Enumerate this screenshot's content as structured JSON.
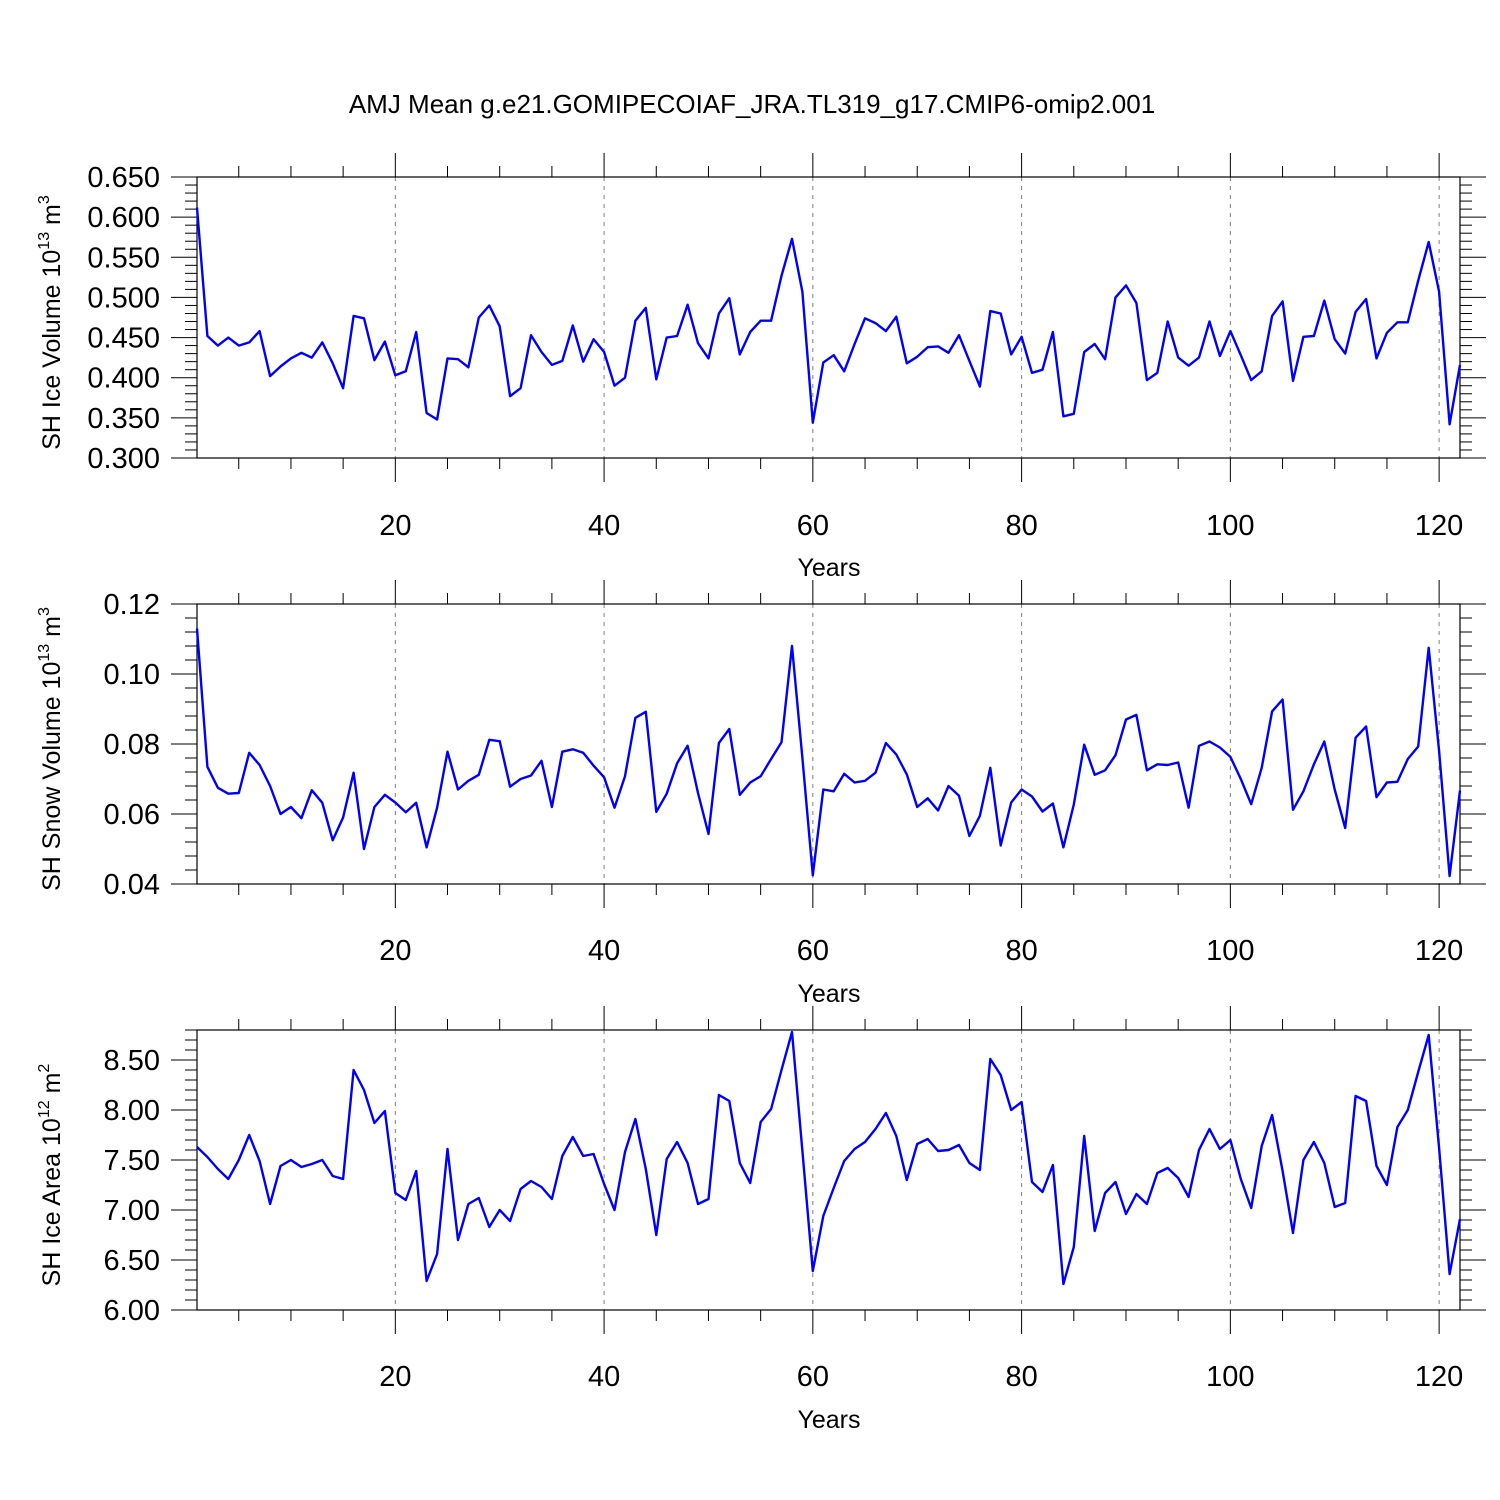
{
  "title": "AMJ Mean g.e21.GOMIPECOIAF_JRA.TL319_g17.CMIP6-omip2.001",
  "colors": {
    "line": "#0000ff",
    "frame": "#000000",
    "grid": "#7f7f7f"
  },
  "chart_data": [
    {
      "type": "line",
      "ylabel_main": "SH Ice Volume 10",
      "ylabel_exp": "13",
      "ylabel_unit": " m",
      "ylabel_unit_exp": "3",
      "xlabel": "Years",
      "xlim": [
        1,
        122
      ],
      "ylim": [
        0.3,
        0.65
      ],
      "xticks": [
        20,
        40,
        60,
        80,
        100,
        120
      ],
      "yticks": [
        "0.300",
        "0.350",
        "0.400",
        "0.450",
        "0.500",
        "0.550",
        "0.600",
        "0.650"
      ],
      "grid": "vertical dashed at major x ticks",
      "x": [
        1,
        2,
        3,
        4,
        5,
        6,
        7,
        8,
        9,
        10,
        11,
        12,
        13,
        14,
        15,
        16,
        17,
        18,
        19,
        20,
        21,
        22,
        23,
        24,
        25,
        26,
        27,
        28,
        29,
        30,
        31,
        32,
        33,
        34,
        35,
        36,
        37,
        38,
        39,
        40,
        41,
        42,
        43,
        44,
        45,
        46,
        47,
        48,
        49,
        50,
        51,
        52,
        53,
        54,
        55,
        56,
        57,
        58,
        59,
        60,
        61,
        62,
        63,
        64,
        65,
        66,
        67,
        68,
        69,
        70,
        71,
        72,
        73,
        74,
        75,
        76,
        77,
        78,
        79,
        80,
        81,
        82,
        83,
        84,
        85,
        86,
        87,
        88,
        89,
        90,
        91,
        92,
        93,
        94,
        95,
        96,
        97,
        98,
        99,
        100,
        101,
        102,
        103,
        104,
        105,
        106,
        107,
        108,
        109,
        110,
        111,
        112,
        113,
        114,
        115,
        116,
        117,
        118,
        119,
        120,
        121,
        122
      ],
      "values": [
        0.612,
        0.452,
        0.44,
        0.45,
        0.44,
        0.444,
        0.458,
        0.402,
        0.414,
        0.424,
        0.431,
        0.425,
        0.444,
        0.418,
        0.387,
        0.477,
        0.474,
        0.422,
        0.445,
        0.403,
        0.408,
        0.457,
        0.356,
        0.348,
        0.424,
        0.423,
        0.413,
        0.475,
        0.49,
        0.464,
        0.377,
        0.387,
        0.453,
        0.432,
        0.416,
        0.421,
        0.465,
        0.42,
        0.448,
        0.432,
        0.39,
        0.4,
        0.471,
        0.487,
        0.398,
        0.45,
        0.452,
        0.491,
        0.443,
        0.424,
        0.48,
        0.499,
        0.429,
        0.457,
        0.471,
        0.471,
        0.527,
        0.573,
        0.507,
        0.344,
        0.419,
        0.428,
        0.408,
        0.442,
        0.474,
        0.468,
        0.458,
        0.476,
        0.418,
        0.426,
        0.438,
        0.439,
        0.431,
        0.453,
        0.421,
        0.389,
        0.483,
        0.48,
        0.429,
        0.451,
        0.406,
        0.41,
        0.457,
        0.352,
        0.355,
        0.432,
        0.442,
        0.423,
        0.5,
        0.515,
        0.493,
        0.397,
        0.406,
        0.47,
        0.425,
        0.415,
        0.425,
        0.47,
        0.427,
        0.458,
        0.428,
        0.397,
        0.408,
        0.477,
        0.495,
        0.396,
        0.451,
        0.452,
        0.496,
        0.448,
        0.43,
        0.482,
        0.498,
        0.424,
        0.456,
        0.469,
        0.469,
        0.521,
        0.569,
        0.507,
        0.342,
        0.416
      ]
    },
    {
      "type": "line",
      "ylabel_main": "SH Snow Volume 10",
      "ylabel_exp": "13",
      "ylabel_unit": " m",
      "ylabel_unit_exp": "3",
      "xlabel": "Years",
      "xlim": [
        1,
        122
      ],
      "ylim": [
        0.04,
        0.12
      ],
      "xticks": [
        20,
        40,
        60,
        80,
        100,
        120
      ],
      "yticks": [
        "0.04",
        "0.06",
        "0.08",
        "0.10",
        "0.12"
      ],
      "grid": "vertical dashed at major x ticks",
      "x": [
        1,
        2,
        3,
        4,
        5,
        6,
        7,
        8,
        9,
        10,
        11,
        12,
        13,
        14,
        15,
        16,
        17,
        18,
        19,
        20,
        21,
        22,
        23,
        24,
        25,
        26,
        27,
        28,
        29,
        30,
        31,
        32,
        33,
        34,
        35,
        36,
        37,
        38,
        39,
        40,
        41,
        42,
        43,
        44,
        45,
        46,
        47,
        48,
        49,
        50,
        51,
        52,
        53,
        54,
        55,
        56,
        57,
        58,
        59,
        60,
        61,
        62,
        63,
        64,
        65,
        66,
        67,
        68,
        69,
        70,
        71,
        72,
        73,
        74,
        75,
        76,
        77,
        78,
        79,
        80,
        81,
        82,
        83,
        84,
        85,
        86,
        87,
        88,
        89,
        90,
        91,
        92,
        93,
        94,
        95,
        96,
        97,
        98,
        99,
        100,
        101,
        102,
        103,
        104,
        105,
        106,
        107,
        108,
        109,
        110,
        111,
        112,
        113,
        114,
        115,
        116,
        117,
        118,
        119,
        120,
        121,
        122
      ],
      "values": [
        0.113,
        0.0735,
        0.0675,
        0.0658,
        0.066,
        0.0775,
        0.074,
        0.068,
        0.06,
        0.062,
        0.0588,
        0.0668,
        0.0632,
        0.0525,
        0.059,
        0.0718,
        0.05,
        0.062,
        0.0655,
        0.0633,
        0.0605,
        0.0632,
        0.0505,
        0.0618,
        0.0778,
        0.067,
        0.0695,
        0.0712,
        0.0812,
        0.0808,
        0.0678,
        0.07,
        0.071,
        0.0752,
        0.062,
        0.0778,
        0.0785,
        0.0775,
        0.0738,
        0.0705,
        0.0618,
        0.0708,
        0.0875,
        0.0892,
        0.0606,
        0.0658,
        0.0745,
        0.0795,
        0.066,
        0.0543,
        0.0803,
        0.0843,
        0.0655,
        0.069,
        0.0708,
        0.0757,
        0.0805,
        0.108,
        0.076,
        0.0425,
        0.067,
        0.0665,
        0.0715,
        0.069,
        0.0695,
        0.0718,
        0.0803,
        0.077,
        0.0713,
        0.062,
        0.0645,
        0.061,
        0.068,
        0.0652,
        0.0537,
        0.0595,
        0.0732,
        0.051,
        0.0633,
        0.067,
        0.065,
        0.0607,
        0.063,
        0.0505,
        0.0627,
        0.0798,
        0.0712,
        0.0725,
        0.0768,
        0.087,
        0.0883,
        0.0725,
        0.0742,
        0.074,
        0.0747,
        0.0618,
        0.0795,
        0.0807,
        0.079,
        0.0763,
        0.07,
        0.0628,
        0.0732,
        0.0893,
        0.0927,
        0.0612,
        0.0665,
        0.0742,
        0.0807,
        0.067,
        0.056,
        0.0818,
        0.085,
        0.0648,
        0.069,
        0.0692,
        0.0757,
        0.0793,
        0.1075,
        0.078,
        0.0423,
        0.0667
      ]
    },
    {
      "type": "line",
      "ylabel_main": "SH Ice Area 10",
      "ylabel_exp": "12",
      "ylabel_unit": " m",
      "ylabel_unit_exp": "2",
      "xlabel": "Years",
      "xlim": [
        1,
        122
      ],
      "ylim": [
        6.0,
        8.8
      ],
      "xticks": [
        20,
        40,
        60,
        80,
        100,
        120
      ],
      "yticks": [
        "6.00",
        "6.50",
        "7.00",
        "7.50",
        "8.00",
        "8.50"
      ],
      "grid": "vertical dashed at major x ticks",
      "x": [
        1,
        2,
        3,
        4,
        5,
        6,
        7,
        8,
        9,
        10,
        11,
        12,
        13,
        14,
        15,
        16,
        17,
        18,
        19,
        20,
        21,
        22,
        23,
        24,
        25,
        26,
        27,
        28,
        29,
        30,
        31,
        32,
        33,
        34,
        35,
        36,
        37,
        38,
        39,
        40,
        41,
        42,
        43,
        44,
        45,
        46,
        47,
        48,
        49,
        50,
        51,
        52,
        53,
        54,
        55,
        56,
        57,
        58,
        59,
        60,
        61,
        62,
        63,
        64,
        65,
        66,
        67,
        68,
        69,
        70,
        71,
        72,
        73,
        74,
        75,
        76,
        77,
        78,
        79,
        80,
        81,
        82,
        83,
        84,
        85,
        86,
        87,
        88,
        89,
        90,
        91,
        92,
        93,
        94,
        95,
        96,
        97,
        98,
        99,
        100,
        101,
        102,
        103,
        104,
        105,
        106,
        107,
        108,
        109,
        110,
        111,
        112,
        113,
        114,
        115,
        116,
        117,
        118,
        119,
        120,
        121,
        122
      ],
      "values": [
        7.63,
        7.53,
        7.41,
        7.31,
        7.5,
        7.75,
        7.49,
        7.06,
        7.44,
        7.5,
        7.43,
        7.46,
        7.5,
        7.34,
        7.31,
        8.4,
        8.2,
        7.87,
        7.99,
        7.17,
        7.1,
        7.39,
        6.29,
        6.56,
        7.61,
        6.7,
        7.06,
        7.12,
        6.83,
        7.0,
        6.89,
        7.21,
        7.29,
        7.23,
        7.11,
        7.54,
        7.73,
        7.54,
        7.56,
        7.26,
        7.0,
        7.58,
        7.91,
        7.41,
        6.75,
        7.51,
        7.68,
        7.47,
        7.06,
        7.11,
        8.15,
        8.09,
        7.47,
        7.27,
        7.88,
        8.01,
        8.4,
        8.78,
        7.59,
        6.39,
        6.94,
        7.22,
        7.49,
        7.61,
        7.68,
        7.81,
        7.97,
        7.74,
        7.3,
        7.66,
        7.71,
        7.59,
        7.6,
        7.65,
        7.47,
        7.4,
        8.51,
        8.35,
        8.0,
        8.08,
        7.28,
        7.18,
        7.45,
        6.26,
        6.63,
        7.74,
        6.79,
        7.17,
        7.28,
        6.96,
        7.16,
        7.06,
        7.37,
        7.42,
        7.32,
        7.13,
        7.6,
        7.81,
        7.61,
        7.7,
        7.31,
        7.02,
        7.64,
        7.95,
        7.39,
        6.77,
        7.5,
        7.68,
        7.47,
        7.03,
        7.07,
        8.14,
        8.09,
        7.44,
        7.25,
        7.83,
        8.0,
        8.38,
        8.75,
        7.62,
        6.36,
        6.91
      ]
    }
  ]
}
